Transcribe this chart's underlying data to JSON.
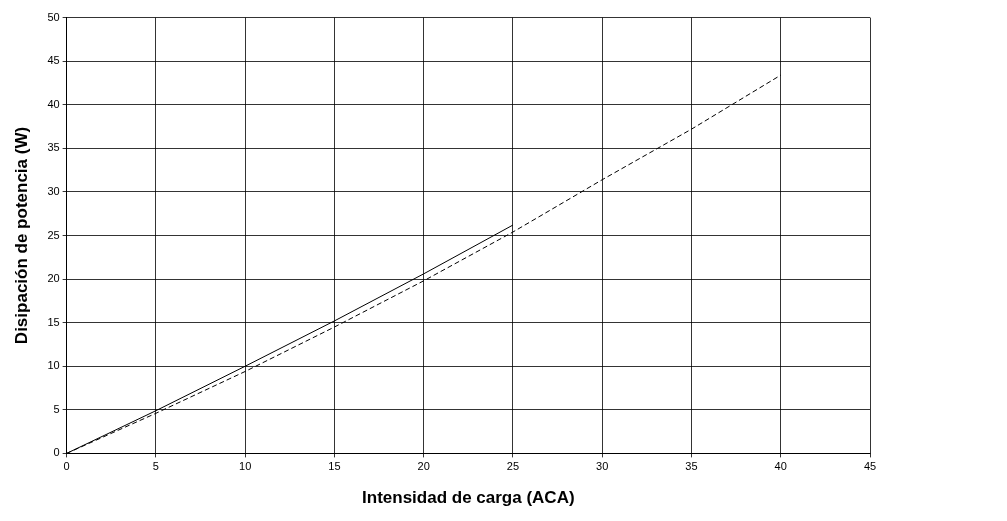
{
  "chart_data": {
    "type": "line",
    "xlabel": "Intensidad de carga (ACA)",
    "ylabel": "Disipación de potencia (W)",
    "xlim": [
      0,
      45
    ],
    "xticks": [
      0,
      5,
      10,
      15,
      20,
      25,
      30,
      35,
      40,
      45
    ],
    "ylim": [
      0,
      50
    ],
    "yticks": [
      0,
      5,
      10,
      15,
      20,
      25,
      30,
      35,
      40,
      45,
      50
    ],
    "grid": true,
    "marker": "none",
    "series": [
      {
        "color": "#000000",
        "line_style": "solid",
        "x": [
          0,
          5,
          10,
          15,
          20,
          25
        ],
        "values": [
          0,
          4.9,
          10,
          15.2,
          20.6,
          26.2
        ]
      },
      {
        "color": "#000000",
        "line_style": "dashed",
        "x": [
          0,
          5,
          10,
          15,
          20,
          25,
          30,
          35,
          40
        ],
        "values": [
          0,
          4.6,
          9.4,
          14.5,
          19.8,
          25.4,
          31.4,
          37.2,
          43.4
        ]
      }
    ]
  }
}
